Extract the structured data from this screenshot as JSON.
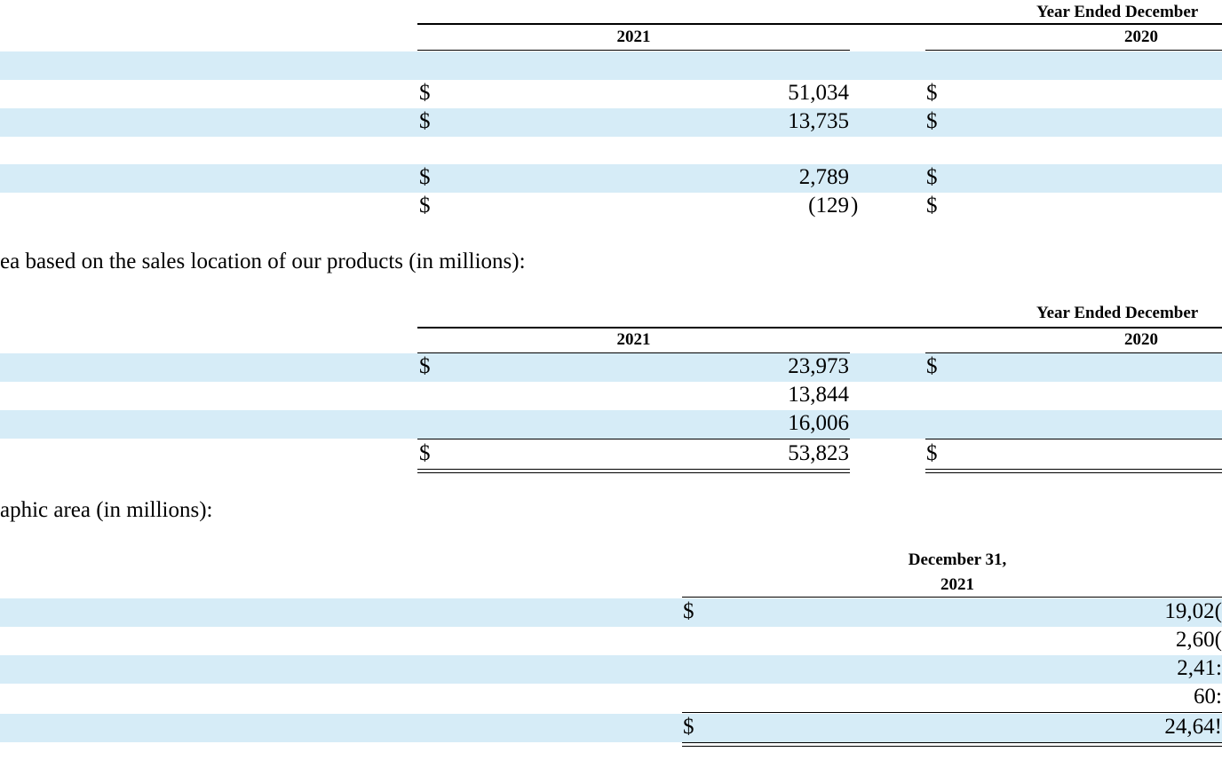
{
  "table1": {
    "header_title": "Year Ended December",
    "col_2021": "2021",
    "col_2020": "2020",
    "rows": [
      {
        "dollar_2021": "$",
        "value_2021": "51,034",
        "dollar_2020": "$"
      },
      {
        "dollar_2021": "$",
        "value_2021": "13,735",
        "dollar_2020": "$"
      },
      {
        "dollar_2021": "$",
        "value_2021": "2,789",
        "dollar_2020": "$"
      },
      {
        "dollar_2021": "$",
        "value_2021": "(129",
        "close_paren": ")",
        "dollar_2020": "$"
      }
    ]
  },
  "intro2": "ea based on the sales location of our products (in millions):",
  "table2": {
    "header_title": "Year Ended December",
    "col_2021": "2021",
    "col_2020": "2020",
    "rows": [
      {
        "dollar_2021": "$",
        "value_2021": "23,973",
        "dollar_2020": "$"
      },
      {
        "dollar_2021": "",
        "value_2021": "13,844",
        "dollar_2020": ""
      },
      {
        "dollar_2021": "",
        "value_2021": "16,006",
        "dollar_2020": ""
      },
      {
        "dollar_2021": "$",
        "value_2021": "53,823",
        "dollar_2020": "$"
      }
    ]
  },
  "intro3": "aphic area (in millions):",
  "table3": {
    "header_line1": "December 31,",
    "header_line2": "2021",
    "rows": [
      {
        "dollar": "$",
        "value": "19,02("
      },
      {
        "dollar": "",
        "value": "2,60("
      },
      {
        "dollar": "",
        "value": "2,41:"
      },
      {
        "dollar": "",
        "value": "60:"
      },
      {
        "dollar": "$",
        "value": "24,64!"
      }
    ]
  }
}
